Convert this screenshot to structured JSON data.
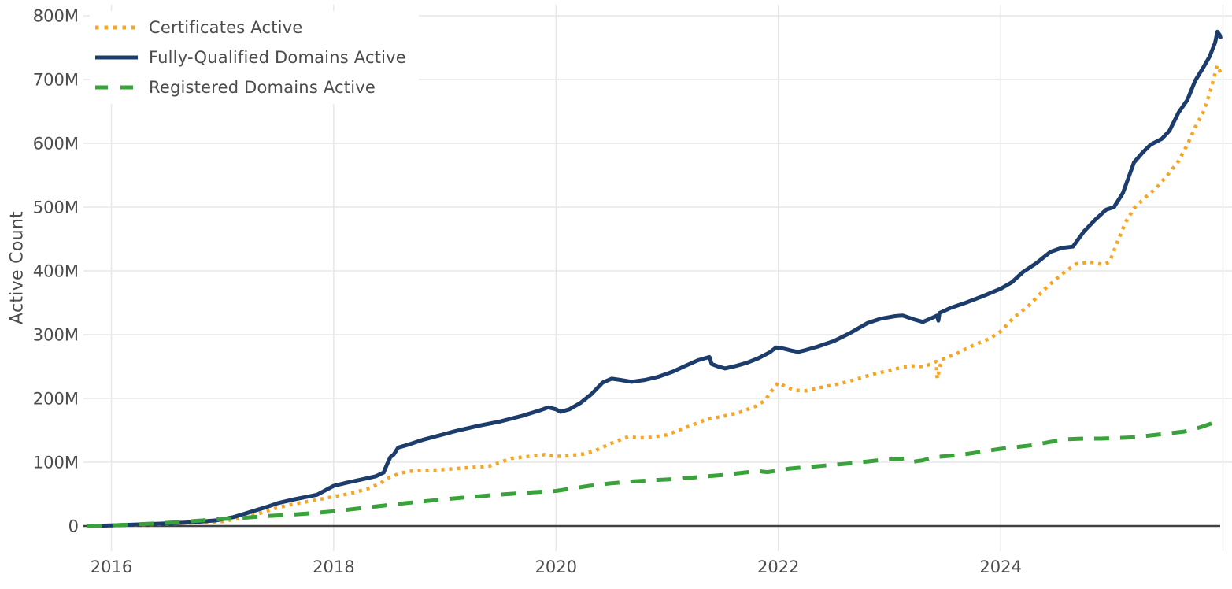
{
  "page": {
    "background": "#ffffff"
  },
  "legend": {
    "position": "top-left",
    "items": [
      {
        "label": "Certificates Active"
      },
      {
        "label": "Fully-Qualified Domains Active"
      },
      {
        "label": "Registered Domains Active"
      }
    ]
  },
  "chart_data": {
    "type": "line",
    "title": "",
    "xlabel": "",
    "ylabel": "Active Count",
    "units": "millions",
    "grid": true,
    "legend_position": "top-left",
    "style": {
      "background": "#ffffff",
      "grid_color": "#e7e7e7",
      "zero_line_color": "#424242",
      "text_color": "#4c4c4c"
    },
    "x_axis": {
      "range": [
        2015.72,
        2026.1
      ],
      "ticks": [
        "2016",
        "2018",
        "2020",
        "2022",
        "2024"
      ],
      "tick_years": [
        2016,
        2018,
        2020,
        2022,
        2024
      ],
      "gridline_years": [
        2016,
        2018,
        2020,
        2022,
        2024,
        2026
      ]
    },
    "y_axis": {
      "range": [
        -35,
        812
      ],
      "ticks": [
        {
          "value": 0,
          "label": "0"
        },
        {
          "value": 100,
          "label": "100M"
        },
        {
          "value": 200,
          "label": "200M"
        },
        {
          "value": 300,
          "label": "300M"
        },
        {
          "value": 400,
          "label": "400M"
        },
        {
          "value": 500,
          "label": "500M"
        },
        {
          "value": 600,
          "label": "600M"
        },
        {
          "value": 700,
          "label": "700M"
        },
        {
          "value": 800,
          "label": "800M"
        }
      ]
    },
    "series": [
      {
        "id": "certificates",
        "name": "Certificates Active",
        "color": "#f5a623",
        "dash": "dotted",
        "line_width": 4.5,
        "points": [
          [
            2015.78,
            0
          ],
          [
            2016.0,
            0.5
          ],
          [
            2016.3,
            2
          ],
          [
            2016.6,
            4
          ],
          [
            2016.85,
            6
          ],
          [
            2017.0,
            7
          ],
          [
            2017.15,
            12
          ],
          [
            2017.3,
            18
          ],
          [
            2017.48,
            28
          ],
          [
            2017.6,
            33
          ],
          [
            2017.72,
            37
          ],
          [
            2017.85,
            41
          ],
          [
            2018.0,
            46
          ],
          [
            2018.15,
            51
          ],
          [
            2018.3,
            58
          ],
          [
            2018.42,
            67
          ],
          [
            2018.5,
            76
          ],
          [
            2018.6,
            83
          ],
          [
            2018.7,
            86
          ],
          [
            2018.8,
            87
          ],
          [
            2018.95,
            88
          ],
          [
            2019.1,
            90
          ],
          [
            2019.25,
            92
          ],
          [
            2019.4,
            94
          ],
          [
            2019.5,
            100
          ],
          [
            2019.6,
            106
          ],
          [
            2019.75,
            109
          ],
          [
            2019.9,
            112
          ],
          [
            2020.0,
            109
          ],
          [
            2020.1,
            110
          ],
          [
            2020.25,
            113
          ],
          [
            2020.35,
            118
          ],
          [
            2020.5,
            130
          ],
          [
            2020.65,
            140
          ],
          [
            2020.75,
            138
          ],
          [
            2020.85,
            139
          ],
          [
            2021.0,
            143
          ],
          [
            2021.1,
            150
          ],
          [
            2021.25,
            160
          ],
          [
            2021.35,
            167
          ],
          [
            2021.5,
            172
          ],
          [
            2021.65,
            178
          ],
          [
            2021.8,
            188
          ],
          [
            2021.88,
            197
          ],
          [
            2021.94,
            212
          ],
          [
            2022.0,
            225
          ],
          [
            2022.07,
            218
          ],
          [
            2022.15,
            213
          ],
          [
            2022.25,
            212
          ],
          [
            2022.4,
            218
          ],
          [
            2022.55,
            223
          ],
          [
            2022.7,
            230
          ],
          [
            2022.85,
            238
          ],
          [
            2023.0,
            244
          ],
          [
            2023.12,
            249
          ],
          [
            2023.2,
            251
          ],
          [
            2023.3,
            250
          ],
          [
            2023.38,
            254
          ],
          [
            2023.42,
            258
          ],
          [
            2023.43,
            231
          ],
          [
            2023.47,
            261
          ],
          [
            2023.6,
            270
          ],
          [
            2023.75,
            283
          ],
          [
            2023.9,
            294
          ],
          [
            2024.0,
            305
          ],
          [
            2024.12,
            327
          ],
          [
            2024.25,
            345
          ],
          [
            2024.4,
            372
          ],
          [
            2024.55,
            395
          ],
          [
            2024.68,
            411
          ],
          [
            2024.8,
            414
          ],
          [
            2024.92,
            410
          ],
          [
            2024.98,
            414
          ],
          [
            2025.05,
            445
          ],
          [
            2025.12,
            475
          ],
          [
            2025.2,
            498
          ],
          [
            2025.3,
            515
          ],
          [
            2025.4,
            530
          ],
          [
            2025.5,
            550
          ],
          [
            2025.6,
            572
          ],
          [
            2025.68,
            598
          ],
          [
            2025.75,
            625
          ],
          [
            2025.82,
            648
          ],
          [
            2025.88,
            678
          ],
          [
            2025.93,
            710
          ],
          [
            2025.95,
            722
          ],
          [
            2025.97,
            714
          ],
          [
            2025.98,
            710
          ]
        ]
      },
      {
        "id": "fqdns",
        "name": "Fully-Qualified Domains Active",
        "color": "#1c3c6b",
        "dash": "solid",
        "line_width": 5,
        "points": [
          [
            2015.78,
            0
          ],
          [
            2016.0,
            1
          ],
          [
            2016.25,
            2.5
          ],
          [
            2016.5,
            4
          ],
          [
            2016.75,
            6
          ],
          [
            2016.95,
            9
          ],
          [
            2017.1,
            14
          ],
          [
            2017.25,
            22
          ],
          [
            2017.4,
            30
          ],
          [
            2017.5,
            36
          ],
          [
            2017.65,
            42
          ],
          [
            2017.85,
            49
          ],
          [
            2018.0,
            63
          ],
          [
            2018.12,
            68
          ],
          [
            2018.25,
            73
          ],
          [
            2018.38,
            78
          ],
          [
            2018.45,
            84
          ],
          [
            2018.48,
            97
          ],
          [
            2018.51,
            108
          ],
          [
            2018.54,
            112
          ],
          [
            2018.58,
            123
          ],
          [
            2018.68,
            128
          ],
          [
            2018.8,
            135
          ],
          [
            2018.95,
            142
          ],
          [
            2019.1,
            149
          ],
          [
            2019.3,
            157
          ],
          [
            2019.5,
            164
          ],
          [
            2019.7,
            173
          ],
          [
            2019.85,
            181
          ],
          [
            2019.93,
            186
          ],
          [
            2020.0,
            183
          ],
          [
            2020.04,
            179
          ],
          [
            2020.12,
            183
          ],
          [
            2020.22,
            193
          ],
          [
            2020.32,
            207
          ],
          [
            2020.42,
            225
          ],
          [
            2020.5,
            231
          ],
          [
            2020.58,
            229
          ],
          [
            2020.68,
            226
          ],
          [
            2020.8,
            229
          ],
          [
            2020.92,
            234
          ],
          [
            2021.05,
            242
          ],
          [
            2021.15,
            250
          ],
          [
            2021.28,
            260
          ],
          [
            2021.38,
            265
          ],
          [
            2021.4,
            254
          ],
          [
            2021.46,
            250
          ],
          [
            2021.52,
            247
          ],
          [
            2021.62,
            251
          ],
          [
            2021.72,
            256
          ],
          [
            2021.82,
            263
          ],
          [
            2021.92,
            272
          ],
          [
            2021.98,
            280
          ],
          [
            2022.05,
            278
          ],
          [
            2022.12,
            275
          ],
          [
            2022.18,
            273
          ],
          [
            2022.25,
            276
          ],
          [
            2022.35,
            281
          ],
          [
            2022.5,
            290
          ],
          [
            2022.65,
            303
          ],
          [
            2022.8,
            318
          ],
          [
            2022.92,
            325
          ],
          [
            2023.05,
            329
          ],
          [
            2023.12,
            330
          ],
          [
            2023.22,
            324
          ],
          [
            2023.3,
            320
          ],
          [
            2023.38,
            326
          ],
          [
            2023.43,
            330
          ],
          [
            2023.44,
            322
          ],
          [
            2023.45,
            334
          ],
          [
            2023.55,
            342
          ],
          [
            2023.7,
            351
          ],
          [
            2023.85,
            361
          ],
          [
            2024.0,
            372
          ],
          [
            2024.1,
            382
          ],
          [
            2024.2,
            398
          ],
          [
            2024.32,
            412
          ],
          [
            2024.45,
            430
          ],
          [
            2024.55,
            436
          ],
          [
            2024.65,
            438
          ],
          [
            2024.75,
            462
          ],
          [
            2024.85,
            480
          ],
          [
            2024.95,
            496
          ],
          [
            2025.02,
            500
          ],
          [
            2025.1,
            522
          ],
          [
            2025.2,
            570
          ],
          [
            2025.28,
            586
          ],
          [
            2025.35,
            598
          ],
          [
            2025.45,
            607
          ],
          [
            2025.52,
            620
          ],
          [
            2025.6,
            648
          ],
          [
            2025.68,
            668
          ],
          [
            2025.75,
            698
          ],
          [
            2025.82,
            718
          ],
          [
            2025.88,
            736
          ],
          [
            2025.93,
            758
          ],
          [
            2025.95,
            775
          ],
          [
            2025.97,
            770
          ],
          [
            2025.98,
            764
          ]
        ]
      },
      {
        "id": "registered",
        "name": "Registered Domains Active",
        "color": "#3aa23a",
        "dash": "dashed",
        "line_width": 5,
        "points": [
          [
            2015.78,
            0
          ],
          [
            2016.0,
            1
          ],
          [
            2016.2,
            2.5
          ],
          [
            2016.4,
            4
          ],
          [
            2016.6,
            6
          ],
          [
            2016.8,
            8.5
          ],
          [
            2017.0,
            11
          ],
          [
            2017.2,
            13
          ],
          [
            2017.4,
            15.5
          ],
          [
            2017.6,
            17.5
          ],
          [
            2017.8,
            20
          ],
          [
            2018.0,
            23
          ],
          [
            2018.2,
            27
          ],
          [
            2018.4,
            31
          ],
          [
            2018.6,
            35
          ],
          [
            2018.8,
            38.5
          ],
          [
            2019.0,
            42
          ],
          [
            2019.2,
            45
          ],
          [
            2019.4,
            48
          ],
          [
            2019.6,
            50.5
          ],
          [
            2019.8,
            53
          ],
          [
            2020.0,
            55
          ],
          [
            2020.15,
            59
          ],
          [
            2020.3,
            63
          ],
          [
            2020.5,
            67
          ],
          [
            2020.7,
            70
          ],
          [
            2020.9,
            72
          ],
          [
            2021.1,
            74
          ],
          [
            2021.3,
            77
          ],
          [
            2021.5,
            80
          ],
          [
            2021.7,
            84
          ],
          [
            2021.82,
            86
          ],
          [
            2021.9,
            84.5
          ],
          [
            2022.0,
            87
          ],
          [
            2022.1,
            90
          ],
          [
            2022.3,
            93
          ],
          [
            2022.5,
            96
          ],
          [
            2022.7,
            99
          ],
          [
            2022.9,
            103
          ],
          [
            2023.05,
            105
          ],
          [
            2023.16,
            106
          ],
          [
            2023.22,
            101
          ],
          [
            2023.3,
            103
          ],
          [
            2023.4,
            108
          ],
          [
            2023.55,
            110
          ],
          [
            2023.7,
            113
          ],
          [
            2023.85,
            117
          ],
          [
            2024.0,
            121
          ],
          [
            2024.15,
            124
          ],
          [
            2024.3,
            127
          ],
          [
            2024.45,
            132
          ],
          [
            2024.6,
            136
          ],
          [
            2024.75,
            137
          ],
          [
            2024.9,
            137
          ],
          [
            2025.05,
            138
          ],
          [
            2025.2,
            139
          ],
          [
            2025.35,
            142
          ],
          [
            2025.5,
            145
          ],
          [
            2025.65,
            148
          ],
          [
            2025.8,
            155
          ],
          [
            2025.9,
            161
          ],
          [
            2025.98,
            168
          ]
        ]
      }
    ]
  }
}
